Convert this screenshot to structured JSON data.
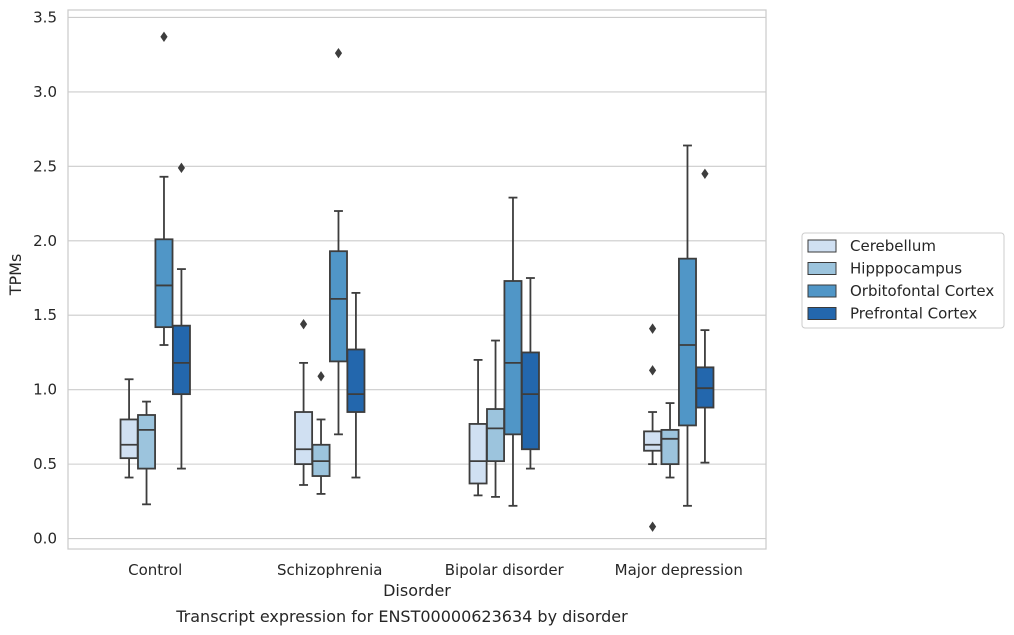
{
  "caption": "Transcript expression for ENST00000623634 by disorder",
  "chart_data": {
    "type": "box",
    "xlabel": "Disorder",
    "ylabel": "TPMs",
    "ylim": [
      -0.07,
      3.55
    ],
    "yticks": [
      0.0,
      0.5,
      1.0,
      1.5,
      2.0,
      2.5,
      3.0,
      3.5
    ],
    "ytick_labels": [
      "0.0",
      "0.5",
      "1.0",
      "1.5",
      "2.0",
      "2.5",
      "3.0",
      "3.5"
    ],
    "grid": "horizontal",
    "legend_position": "right",
    "categories": [
      "Control",
      "Schizophrenia",
      "Bipolar disorder",
      "Major depression"
    ],
    "series": [
      {
        "name": "Cerebellum",
        "color": "#d0e0f2",
        "boxes": [
          {
            "whislo": 0.41,
            "q1": 0.54,
            "med": 0.63,
            "q3": 0.8,
            "whishi": 1.07,
            "fliers": []
          },
          {
            "whislo": 0.36,
            "q1": 0.5,
            "med": 0.6,
            "q3": 0.85,
            "whishi": 1.18,
            "fliers": [
              1.44
            ]
          },
          {
            "whislo": 0.29,
            "q1": 0.37,
            "med": 0.52,
            "q3": 0.77,
            "whishi": 1.2,
            "fliers": []
          },
          {
            "whislo": 0.5,
            "q1": 0.59,
            "med": 0.63,
            "q3": 0.72,
            "whishi": 0.85,
            "fliers": [
              1.41,
              1.13,
              0.08
            ]
          }
        ]
      },
      {
        "name": "Hipppocampus",
        "color": "#9cc4dd",
        "boxes": [
          {
            "whislo": 0.23,
            "q1": 0.47,
            "med": 0.73,
            "q3": 0.83,
            "whishi": 0.92,
            "fliers": []
          },
          {
            "whislo": 0.3,
            "q1": 0.42,
            "med": 0.52,
            "q3": 0.63,
            "whishi": 0.8,
            "fliers": [
              1.09
            ]
          },
          {
            "whislo": 0.28,
            "q1": 0.52,
            "med": 0.74,
            "q3": 0.87,
            "whishi": 1.33,
            "fliers": []
          },
          {
            "whislo": 0.41,
            "q1": 0.5,
            "med": 0.67,
            "q3": 0.73,
            "whishi": 0.91,
            "fliers": []
          }
        ]
      },
      {
        "name": "Orbitofontal Cortex",
        "color": "#5096c7",
        "boxes": [
          {
            "whislo": 1.3,
            "q1": 1.42,
            "med": 1.7,
            "q3": 2.01,
            "whishi": 2.43,
            "fliers": [
              3.37
            ]
          },
          {
            "whislo": 0.7,
            "q1": 1.19,
            "med": 1.61,
            "q3": 1.93,
            "whishi": 2.2,
            "fliers": [
              3.26
            ]
          },
          {
            "whislo": 0.22,
            "q1": 0.7,
            "med": 1.18,
            "q3": 1.73,
            "whishi": 2.29,
            "fliers": []
          },
          {
            "whislo": 0.22,
            "q1": 0.76,
            "med": 1.3,
            "q3": 1.88,
            "whishi": 2.64,
            "fliers": []
          }
        ]
      },
      {
        "name": "Prefrontal Cortex",
        "color": "#2367ad",
        "boxes": [
          {
            "whislo": 0.47,
            "q1": 0.97,
            "med": 1.18,
            "q3": 1.43,
            "whishi": 1.81,
            "fliers": [
              2.49
            ]
          },
          {
            "whislo": 0.41,
            "q1": 0.85,
            "med": 0.97,
            "q3": 1.27,
            "whishi": 1.65,
            "fliers": []
          },
          {
            "whislo": 0.47,
            "q1": 0.6,
            "med": 0.97,
            "q3": 1.25,
            "whishi": 1.75,
            "fliers": []
          },
          {
            "whislo": 0.51,
            "q1": 0.88,
            "med": 1.01,
            "q3": 1.15,
            "whishi": 1.4,
            "fliers": [
              2.45
            ]
          }
        ]
      }
    ]
  }
}
